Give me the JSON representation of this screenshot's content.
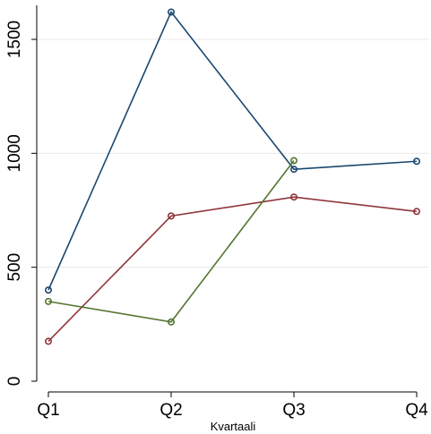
{
  "chart_data": {
    "type": "line",
    "title": "",
    "xlabel": "Kvartaali",
    "ylabel": "",
    "categories": [
      "Q1",
      "Q2",
      "Q3",
      "Q4"
    ],
    "yticks": [
      0,
      500,
      1000,
      1500
    ],
    "ylim": [
      -30,
      1640
    ],
    "grid": true,
    "legend": "none",
    "series": [
      {
        "color": "#1a476f",
        "values": [
          400,
          1620,
          930,
          965
        ]
      },
      {
        "color": "#90353b",
        "values": [
          175,
          725,
          808,
          745
        ]
      },
      {
        "color": "#55752f",
        "values": [
          350,
          260,
          968,
          null
        ]
      }
    ]
  }
}
